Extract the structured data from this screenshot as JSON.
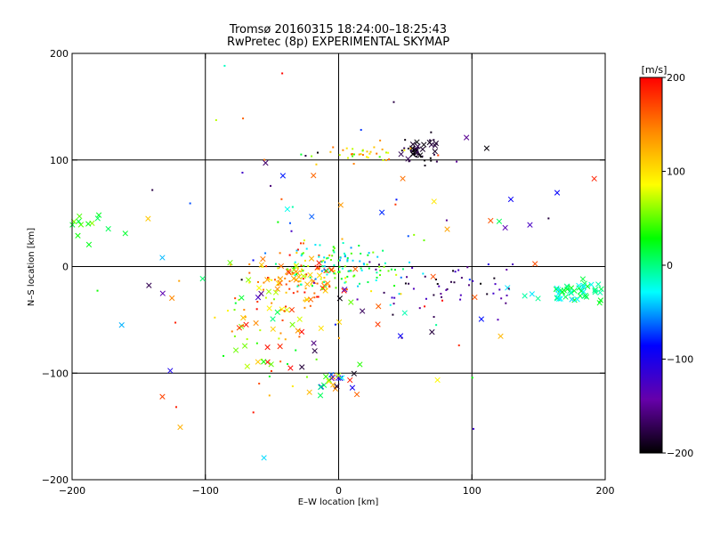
{
  "chart_data": {
    "type": "scatter",
    "title": "Tromsø 20160315 18:24:00–18:25:43",
    "subtitle": "RwPretec (8p) EXPERIMENTAL SKYMAP",
    "xlabel": "E–W location [km]",
    "ylabel": "N–S location [km]",
    "xlim": [
      -200,
      200
    ],
    "ylim": [
      -200,
      200
    ],
    "grid": true,
    "x_ticks": [
      "−200",
      "−100",
      "0",
      "100",
      "200"
    ],
    "y_ticks": [
      "200",
      "100",
      "0",
      "−100",
      "−200"
    ],
    "colorbar": {
      "label": "[m/s]",
      "range": [
        -200,
        200
      ],
      "ticks": [
        "200",
        "100",
        "0",
        "−100",
        "−200"
      ],
      "colors": [
        "#ff0000",
        "#ff8800",
        "#ffff00",
        "#00ff00",
        "#00ffff",
        "#0000ff",
        "#6600aa",
        "#000000"
      ]
    },
    "clusters": [
      {
        "cx": -30,
        "cy": -10,
        "sx": 18,
        "sy": 12,
        "n": 120,
        "vmin": 60,
        "vmax": 200,
        "m": "mix"
      },
      {
        "cx": 5,
        "cy": 0,
        "sx": 18,
        "sy": 10,
        "n": 110,
        "vmin": -60,
        "vmax": 60,
        "m": "dot"
      },
      {
        "cx": 60,
        "cy": 108,
        "sx": 8,
        "sy": 6,
        "n": 45,
        "vmin": -200,
        "vmax": -170,
        "m": "mix"
      },
      {
        "cx": 15,
        "cy": 106,
        "sx": 14,
        "sy": 4,
        "n": 35,
        "vmin": 40,
        "vmax": 160,
        "m": "dot"
      },
      {
        "cx": 178,
        "cy": -25,
        "sx": 18,
        "sy": 5,
        "n": 55,
        "vmin": -40,
        "vmax": 30,
        "m": "x"
      },
      {
        "cx": -188,
        "cy": 40,
        "sx": 10,
        "sy": 8,
        "n": 14,
        "vmin": 10,
        "vmax": 60,
        "m": "x"
      },
      {
        "cx": 70,
        "cy": -20,
        "sx": 25,
        "sy": 15,
        "n": 45,
        "vmin": -200,
        "vmax": -120,
        "m": "dot"
      },
      {
        "cx": -55,
        "cy": -60,
        "sx": 20,
        "sy": 25,
        "n": 60,
        "vmin": 0,
        "vmax": 200,
        "m": "mix"
      },
      {
        "cx": -5,
        "cy": -108,
        "sx": 10,
        "sy": 6,
        "n": 22,
        "vmin": -200,
        "vmax": 200,
        "m": "x"
      },
      {
        "cx": 0,
        "cy": 0,
        "sx": 90,
        "sy": 80,
        "n": 130,
        "vmin": -200,
        "vmax": 200,
        "m": "mix"
      }
    ]
  }
}
